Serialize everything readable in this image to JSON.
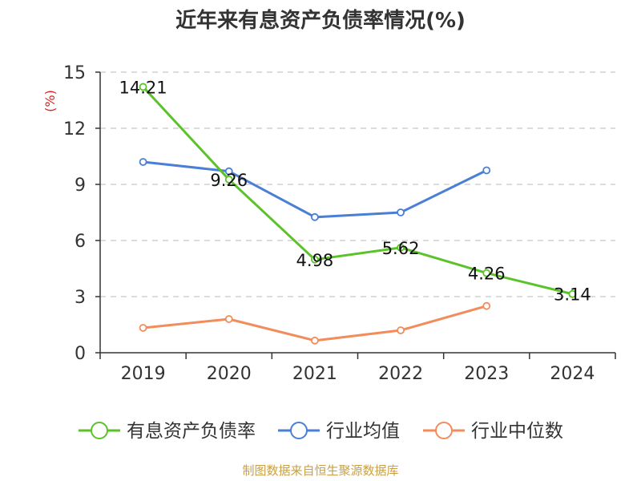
{
  "chart_data": {
    "type": "line",
    "title": "近年来有息资产负债率情况(%)",
    "ylabel": "(%)",
    "categories": [
      "2019",
      "2020",
      "2021",
      "2022",
      "2023",
      "2024"
    ],
    "yticks": [
      "0",
      "3",
      "6",
      "9",
      "12",
      "15"
    ],
    "ylim": [
      0,
      15
    ],
    "grid": true,
    "legend_position": "bottom",
    "series": [
      {
        "name": "有息资产负债率",
        "color": "#5cc22a",
        "values": [
          14.21,
          9.26,
          4.98,
          5.62,
          4.26,
          3.14
        ],
        "labels": [
          "14.21",
          "9.26",
          "4.98",
          "5.62",
          "4.26",
          "3.14"
        ]
      },
      {
        "name": "行业均值",
        "color": "#4a7fd6",
        "values": [
          10.2,
          9.7,
          7.25,
          7.5,
          9.75,
          null
        ]
      },
      {
        "name": "行业中位数",
        "color": "#f28c5a",
        "values": [
          1.33,
          1.8,
          0.65,
          1.2,
          2.5,
          null
        ]
      }
    ],
    "source": "制图数据来自恒生聚源数据库"
  }
}
